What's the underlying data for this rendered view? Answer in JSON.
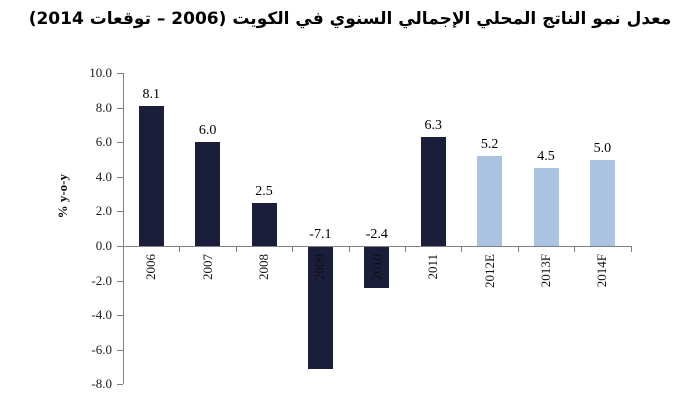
{
  "chart_data": {
    "type": "bar",
    "title": "معدل نمو الناتج المحلي الإجمالي السنوي في الكويت (2006 – توقعات 2014)",
    "ylabel": "% y-o-y",
    "xlabel": "",
    "categories": [
      "2006",
      "2007",
      "2008",
      "2009",
      "2010",
      "2011",
      "2012E",
      "2013F",
      "2014F"
    ],
    "values": [
      8.1,
      6.0,
      2.5,
      -7.1,
      -2.4,
      6.3,
      5.2,
      4.5,
      5.0
    ],
    "roles": [
      "actual",
      "actual",
      "actual",
      "actual",
      "actual",
      "actual",
      "forecast",
      "forecast",
      "forecast"
    ],
    "data_labels": [
      "8.1",
      "6.0",
      "2.5",
      "-7.1",
      "-2.4",
      "6.3",
      "5.2",
      "4.5",
      "5.0"
    ],
    "yticks": [
      "10.0",
      "8.0",
      "6.0",
      "4.0",
      "2.0",
      "0.0",
      "-2.0",
      "-4.0",
      "-6.0",
      "-8.0"
    ],
    "ylim": [
      -8.0,
      10.0
    ],
    "ytick_step": 2.0,
    "grid": false,
    "legend_position": "none",
    "colors": {
      "actual": "#1a1e3a",
      "forecast": "#a9c3e0",
      "axis": "#808080",
      "text": "#000000"
    }
  }
}
